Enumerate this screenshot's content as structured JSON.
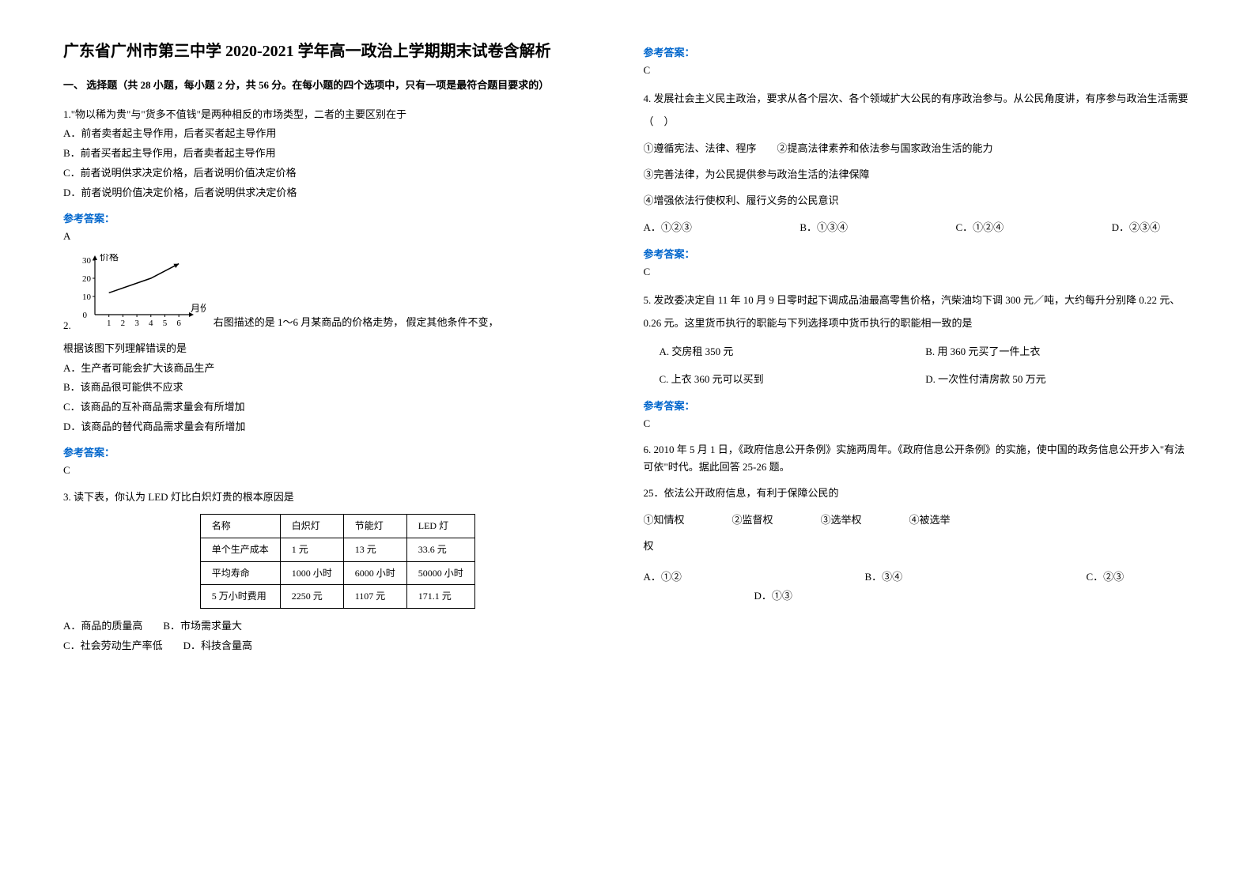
{
  "title": "广东省广州市第三中学 2020-2021 学年高一政治上学期期末试卷含解析",
  "section_header": "一、 选择题（共 28 小题，每小题 2 分，共 56 分。在每小题的四个选项中，只有一项是最符合题目要求的）",
  "answer_label": "参考答案：",
  "q1": {
    "text": "1.\"物以稀为贵\"与\"货多不值钱\"是两种相反的市场类型，二者的主要区别在于",
    "optA": "A．前者卖者起主导作用，后者买者起主导作用",
    "optB": "B．前者买者起主导作用，后者卖者起主导作用",
    "optC": "C．前者说明供求决定价格，后者说明价值决定价格",
    "optD": "D．前者说明价值决定价格，后者说明供求决定价格",
    "answer": "A"
  },
  "q2": {
    "num": "2.",
    "text_after_chart": "右图描述的是 1～6 月某商品的价格走势， 假定其他条件不变，",
    "text_line2": "根据该图下列理解错误的是",
    "optA": "A．生产者可能会扩大该商品生产",
    "optB": "B．该商品很可能供不应求",
    "optC": "C．该商品的互补商品需求量会有所增加",
    "optD": "D．该商品的替代商品需求量会有所增加",
    "answer": "C",
    "chart": {
      "type": "line",
      "y_label": "价格",
      "x_label": "月份",
      "x_values": [
        1,
        2,
        3,
        4,
        5,
        6
      ],
      "y_ticks": [
        0,
        10,
        20,
        30
      ],
      "data_points": [
        [
          1,
          12
        ],
        [
          4,
          20
        ],
        [
          6,
          28
        ]
      ],
      "line_color": "#000000",
      "axis_color": "#000000",
      "background_color": "#ffffff",
      "width": 170,
      "height": 95
    }
  },
  "q3": {
    "text": "3. 读下表，你认为 LED 灯比白炽灯贵的根本原因是",
    "table": {
      "columns": [
        "名称",
        "白炽灯",
        "节能灯",
        "LED 灯"
      ],
      "rows": [
        [
          "单个生产成本",
          "1 元",
          "13 元",
          "33.6 元"
        ],
        [
          "平均寿命",
          "1000 小时",
          "6000 小时",
          "50000 小时"
        ],
        [
          "5 万小时费用",
          "2250 元",
          "1107 元",
          "171.1 元"
        ]
      ]
    },
    "optAB": "A．商品的质量高　　B．市场需求量大",
    "optCD": "  C．社会劳动生产率低　　D．科技含量高",
    "answer": "C"
  },
  "q4": {
    "text": "4. 发展社会主义民主政治，要求从各个层次、各个领域扩大公民的有序政治参与。从公民角度讲，有序参与政治生活需要（　）",
    "sub1": "①遵循宪法、法律、程序　　②提高法律素养和依法参与国家政治生活的能力",
    "sub3": "③完善法律，为公民提供参与政治生活的法律保障",
    "sub4": "④增强依法行使权利、履行义务的公民意识",
    "optA": "A．①②③",
    "optB": "B．①③④",
    "optC": "C．①②④",
    "optD": "D．②③④",
    "answer": "C"
  },
  "q5": {
    "text": "5. 发改委决定自 11 年 10 月 9 日零时起下调成品油最高零售价格，汽柴油均下调 300 元／吨，大约每升分别降 0.22 元、0.26 元。这里货币执行的职能与下列选择项中货币执行的职能相一致的是",
    "optA": "A. 交房租 350 元",
    "optB": "B. 用 360 元买了一件上衣",
    "optC": "C. 上衣 360 元可以买到",
    "optD": "D. 一次性付清房款 50 万元",
    "answer": "C"
  },
  "q6": {
    "text": "6. 2010 年 5 月 1 日，《政府信息公开条例》实施两周年。《政府信息公开条例》的实施，使中国的政务信息公开步入\"有法可依\"时代。据此回答 25-26 题。",
    "sub25": "25．依法公开政府信息，有利于保障公民的",
    "c1": "①知情权",
    "c2": "②监督权",
    "c3": "③选举权",
    "c4": "④被选举",
    "c4b": "权",
    "optA": "A．①②",
    "optB": "B．③④",
    "optC": "C．②③",
    "optD": "D．①③"
  }
}
